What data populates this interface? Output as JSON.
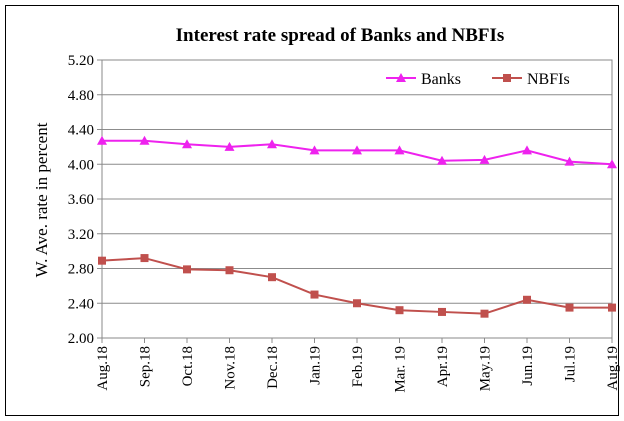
{
  "chart_data": {
    "type": "line",
    "title": "Interest rate spread of Banks and NBFIs",
    "ylabel": "W. Ave. rate in percent",
    "xlabel": "",
    "ylim": [
      2.0,
      5.2
    ],
    "yticks": [
      "2.00",
      "2.40",
      "2.80",
      "3.20",
      "3.60",
      "4.00",
      "4.40",
      "4.80",
      "5.20"
    ],
    "grid": true,
    "legend_position": "top-right",
    "categories": [
      "Aug.18",
      "Sep.18",
      "Oct.18",
      "Nov.18",
      "Dec.18",
      "Jan.19",
      "Feb.19",
      "Mar. 19",
      "Apr.19",
      "May.19",
      "Jun.19",
      "Jul.19",
      "Aug.19"
    ],
    "series": [
      {
        "name": "Banks",
        "color": "#ee22ee",
        "marker": "triangle",
        "values": [
          4.27,
          4.27,
          4.23,
          4.2,
          4.23,
          4.16,
          4.16,
          4.16,
          4.04,
          4.05,
          4.16,
          4.03,
          4.0
        ]
      },
      {
        "name": "NBFIs",
        "color": "#c0504d",
        "marker": "square",
        "values": [
          2.89,
          2.92,
          2.79,
          2.78,
          2.7,
          2.5,
          2.4,
          2.32,
          2.3,
          2.28,
          2.44,
          2.35,
          2.35
        ]
      }
    ]
  }
}
